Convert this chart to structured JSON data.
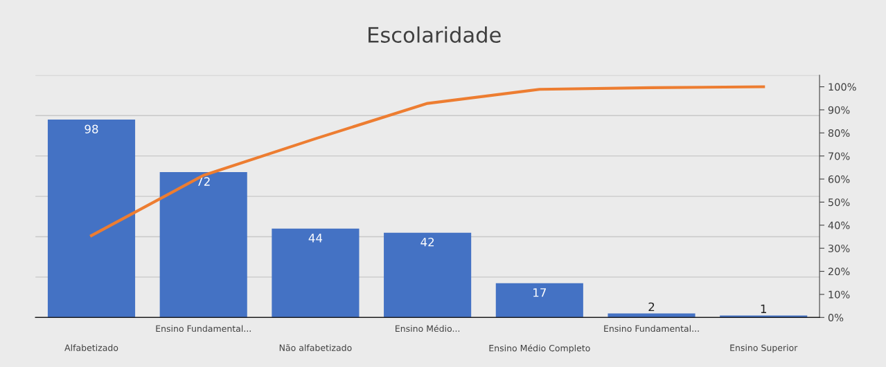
{
  "chart_data": {
    "type": "bar",
    "title": "Escolaridade",
    "categories": [
      "Alfabetizado",
      "Ensino Fundamental...",
      "Não alfabetizado",
      "Ensino Médio...",
      "Ensino Médio Completo",
      "Ensino Fundamental...",
      "Ensino Superior"
    ],
    "series": [
      {
        "color": "#4472c4",
        "values": [
          98,
          72,
          44,
          42,
          17,
          2,
          1
        ],
        "value_labels": [
          "98",
          "72",
          "44",
          "42",
          "17",
          "2",
          "1"
        ]
      },
      {
        "type": "line",
        "axis": "y2",
        "color": "#ed7d31",
        "values": [
          35.5,
          61.6,
          77.5,
          92.8,
          98.9,
          99.6,
          100
        ]
      }
    ],
    "ylim": [
      0,
      120
    ],
    "yticks": [
      {
        "value": 0,
        "label": null
      },
      {
        "value": 20,
        "label": null
      },
      {
        "value": 40,
        "label": null
      },
      {
        "value": 60,
        "label": null
      },
      {
        "value": 80,
        "label": null
      },
      {
        "value": 100,
        "label": null
      },
      {
        "value": 120,
        "label": null
      }
    ],
    "y2lim": [
      0,
      105
    ],
    "y2ticks": [
      {
        "value": 0,
        "label": "0%"
      },
      {
        "value": 10,
        "label": "10%"
      },
      {
        "value": 20,
        "label": "20%"
      },
      {
        "value": 30,
        "label": "30%"
      },
      {
        "value": 40,
        "label": "40%"
      },
      {
        "value": 50,
        "label": "50%"
      },
      {
        "value": 60,
        "label": "60%"
      },
      {
        "value": 70,
        "label": "70%"
      },
      {
        "value": 80,
        "label": "80%"
      },
      {
        "value": 90,
        "label": "90%"
      },
      {
        "value": 100,
        "label": "100%"
      }
    ],
    "grid": "y",
    "marker": "none",
    "line_style": "solid"
  }
}
